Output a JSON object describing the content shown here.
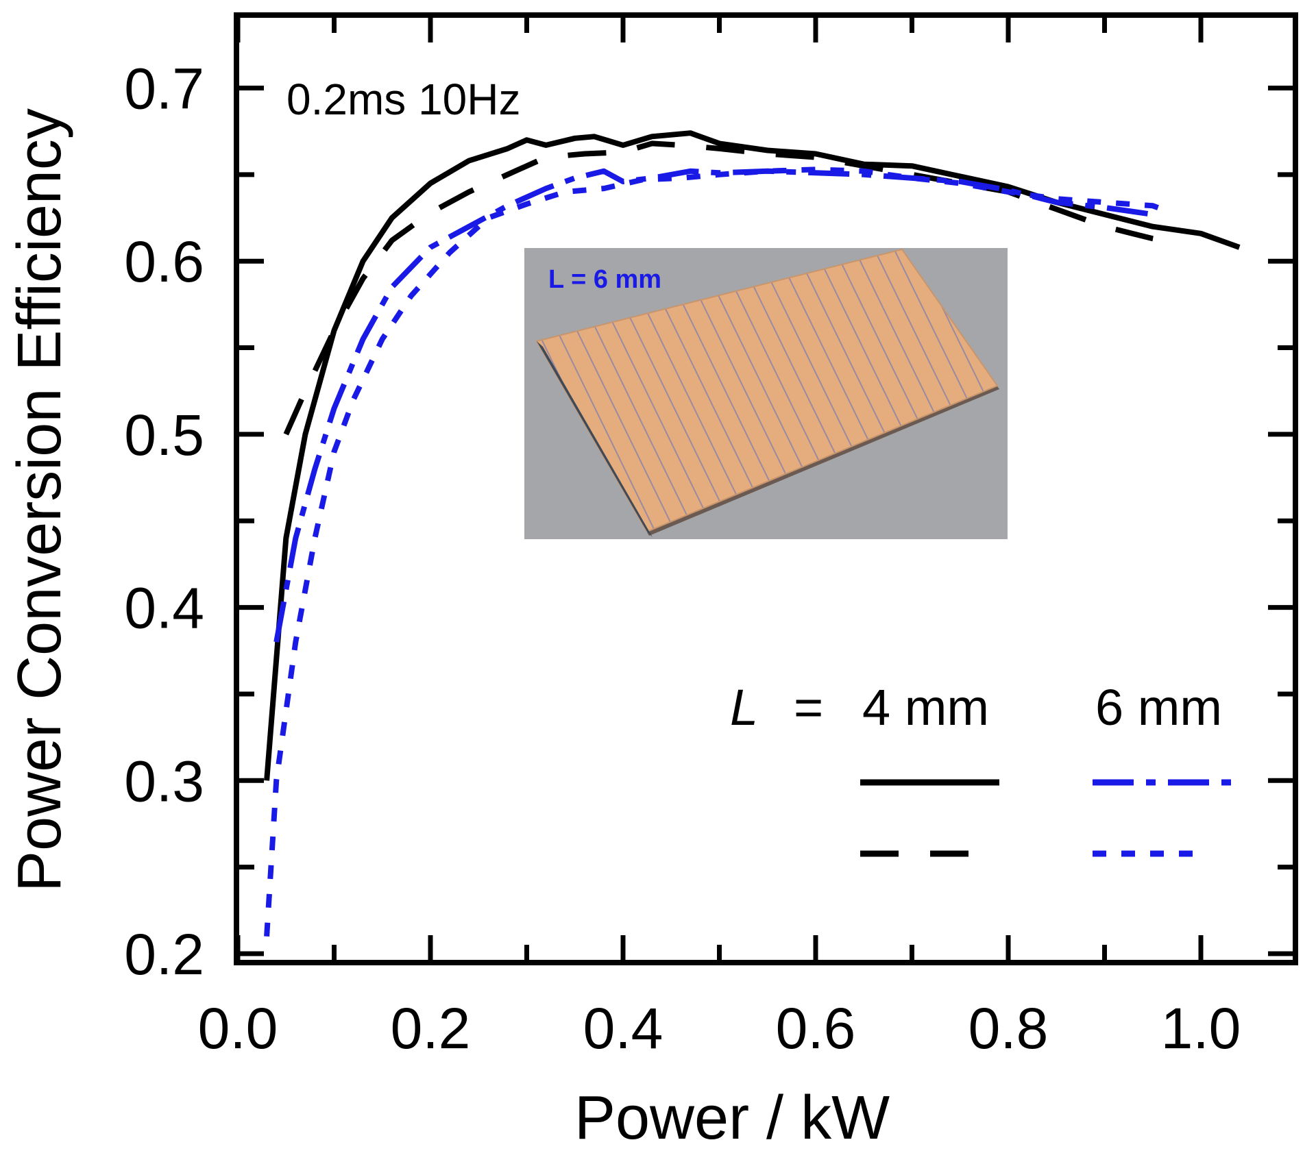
{
  "chart_data": {
    "type": "line",
    "title": "",
    "xlabel": "Power / kW",
    "ylabel": "Power Conversion Efficiency",
    "xlim": [
      0.0,
      1.1
    ],
    "ylim": [
      0.2,
      0.75
    ],
    "xticks": [
      "0.0",
      "0.2",
      "0.4",
      "0.6",
      "0.8",
      "1.0"
    ],
    "yticks": [
      "0.2",
      "0.3",
      "0.4",
      "0.5",
      "0.6",
      "0.7"
    ],
    "grid": false,
    "annotation": "0.2ms 10Hz",
    "inset_label": "L = 6 mm",
    "legend": {
      "placement": "bottom-right",
      "prefix": "L",
      "equals": "=",
      "columns": [
        "4 mm",
        "6 mm"
      ]
    },
    "colors": {
      "black": "#000000",
      "blue": "#1a1ae6"
    },
    "series": [
      {
        "style": "solid",
        "color": "#000000",
        "x": [
          0.03,
          0.05,
          0.07,
          0.1,
          0.13,
          0.16,
          0.2,
          0.24,
          0.28,
          0.3,
          0.32,
          0.35,
          0.37,
          0.4,
          0.43,
          0.47,
          0.5,
          0.55,
          0.6,
          0.65,
          0.7,
          0.75,
          0.8,
          0.85,
          0.9,
          0.95,
          1.0,
          1.04
        ],
        "y": [
          0.3,
          0.44,
          0.5,
          0.56,
          0.6,
          0.625,
          0.645,
          0.658,
          0.665,
          0.67,
          0.667,
          0.671,
          0.672,
          0.667,
          0.672,
          0.674,
          0.668,
          0.664,
          0.662,
          0.656,
          0.655,
          0.649,
          0.643,
          0.634,
          0.627,
          0.62,
          0.616,
          0.608
        ]
      },
      {
        "style": "dashed",
        "color": "#000000",
        "x": [
          0.05,
          0.07,
          0.1,
          0.13,
          0.16,
          0.2,
          0.24,
          0.28,
          0.32,
          0.36,
          0.4,
          0.43,
          0.46,
          0.5,
          0.55,
          0.6,
          0.65,
          0.7,
          0.75,
          0.8,
          0.85,
          0.9,
          0.95,
          0.98
        ],
        "y": [
          0.5,
          0.525,
          0.56,
          0.59,
          0.612,
          0.628,
          0.64,
          0.65,
          0.66,
          0.662,
          0.663,
          0.668,
          0.667,
          0.665,
          0.662,
          0.66,
          0.655,
          0.65,
          0.645,
          0.64,
          0.63,
          0.62,
          0.613,
          0.61
        ]
      },
      {
        "style": "dashdot",
        "color": "#1a1ae6",
        "x": [
          0.04,
          0.06,
          0.08,
          0.1,
          0.13,
          0.16,
          0.2,
          0.24,
          0.28,
          0.32,
          0.35,
          0.38,
          0.4,
          0.43,
          0.47,
          0.5,
          0.55,
          0.6,
          0.65,
          0.7,
          0.75,
          0.8,
          0.85,
          0.9,
          0.95
        ],
        "y": [
          0.38,
          0.44,
          0.48,
          0.515,
          0.555,
          0.585,
          0.608,
          0.62,
          0.632,
          0.642,
          0.648,
          0.652,
          0.646,
          0.648,
          0.652,
          0.651,
          0.652,
          0.651,
          0.65,
          0.648,
          0.646,
          0.641,
          0.634,
          0.631,
          0.627
        ]
      },
      {
        "style": "dotted",
        "color": "#1a1ae6",
        "x": [
          0.03,
          0.04,
          0.06,
          0.08,
          0.1,
          0.12,
          0.15,
          0.18,
          0.22,
          0.26,
          0.3,
          0.34,
          0.38,
          0.42,
          0.46,
          0.5,
          0.55,
          0.6,
          0.65,
          0.7,
          0.75,
          0.8,
          0.85,
          0.9,
          0.95,
          0.97
        ],
        "y": [
          0.21,
          0.3,
          0.38,
          0.44,
          0.49,
          0.52,
          0.555,
          0.58,
          0.605,
          0.625,
          0.633,
          0.64,
          0.642,
          0.647,
          0.648,
          0.65,
          0.652,
          0.653,
          0.652,
          0.648,
          0.645,
          0.64,
          0.636,
          0.634,
          0.632,
          0.628
        ]
      }
    ]
  }
}
